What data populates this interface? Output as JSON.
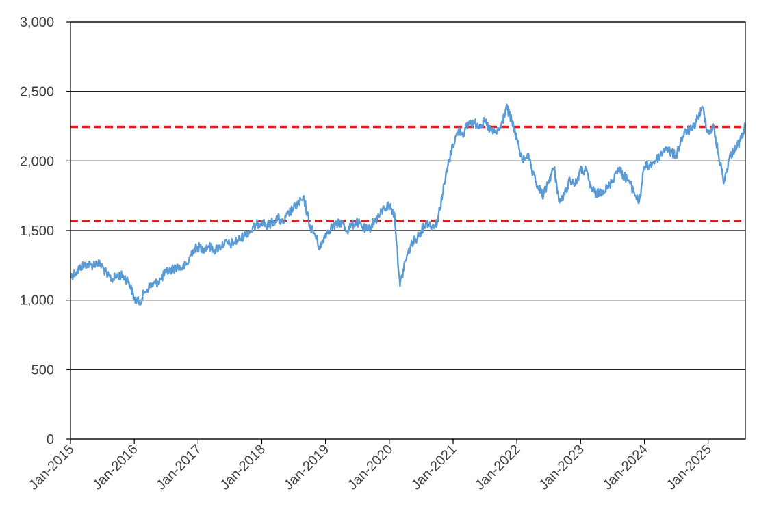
{
  "chart_data": {
    "type": "line",
    "title": "",
    "xlabel": "",
    "ylabel": "",
    "ylim": [
      0,
      3000
    ],
    "yticks": [
      0,
      500,
      1000,
      1500,
      2000,
      2500,
      3000
    ],
    "ytick_labels": [
      "0",
      "500",
      "1,000",
      "1,500",
      "2,000",
      "2,500",
      "3,000"
    ],
    "xlim": [
      "2015-01",
      "2025-08"
    ],
    "xticks": [
      "2015-01",
      "2016-01",
      "2017-01",
      "2018-01",
      "2019-01",
      "2020-01",
      "2021-01",
      "2022-01",
      "2023-01",
      "2024-01",
      "2025-01"
    ],
    "xtick_labels": [
      "Jan-2015",
      "Jan-2016",
      "Jan-2017",
      "Jan-2018",
      "Jan-2019",
      "Jan-2020",
      "Jan-2021",
      "Jan-2022",
      "Jan-2023",
      "Jan-2024",
      "Jan-2025"
    ],
    "grid": "horizontal",
    "legend": "none",
    "series": [
      {
        "color": "#5B9BD5",
        "x": [
          "2015-01",
          "2015-02",
          "2015-03",
          "2015-04",
          "2015-05",
          "2015-06",
          "2015-07",
          "2015-08",
          "2015-09",
          "2015-10",
          "2015-11",
          "2015-12",
          "2016-01",
          "2016-02",
          "2016-03",
          "2016-04",
          "2016-05",
          "2016-06",
          "2016-07",
          "2016-08",
          "2016-09",
          "2016-10",
          "2016-11",
          "2016-12",
          "2017-01",
          "2017-02",
          "2017-03",
          "2017-04",
          "2017-05",
          "2017-06",
          "2017-07",
          "2017-08",
          "2017-09",
          "2017-10",
          "2017-11",
          "2017-12",
          "2018-01",
          "2018-02",
          "2018-03",
          "2018-04",
          "2018-05",
          "2018-06",
          "2018-07",
          "2018-08",
          "2018-09",
          "2018-10",
          "2018-11",
          "2018-12",
          "2019-01",
          "2019-02",
          "2019-03",
          "2019-04",
          "2019-05",
          "2019-06",
          "2019-07",
          "2019-08",
          "2019-09",
          "2019-10",
          "2019-11",
          "2019-12",
          "2020-01",
          "2020-02",
          "2020-03",
          "2020-04",
          "2020-05",
          "2020-06",
          "2020-07",
          "2020-08",
          "2020-09",
          "2020-10",
          "2020-11",
          "2020-12",
          "2021-01",
          "2021-02",
          "2021-03",
          "2021-04",
          "2021-05",
          "2021-06",
          "2021-07",
          "2021-08",
          "2021-09",
          "2021-10",
          "2021-11",
          "2021-12",
          "2022-01",
          "2022-02",
          "2022-03",
          "2022-04",
          "2022-05",
          "2022-06",
          "2022-07",
          "2022-08",
          "2022-09",
          "2022-10",
          "2022-11",
          "2022-12",
          "2023-01",
          "2023-02",
          "2023-03",
          "2023-04",
          "2023-05",
          "2023-06",
          "2023-07",
          "2023-08",
          "2023-09",
          "2023-10",
          "2023-11",
          "2023-12",
          "2024-01",
          "2024-02",
          "2024-03",
          "2024-04",
          "2024-05",
          "2024-06",
          "2024-07",
          "2024-08",
          "2024-09",
          "2024-10",
          "2024-11",
          "2024-12",
          "2025-01",
          "2025-02",
          "2025-03",
          "2025-04",
          "2025-05",
          "2025-06",
          "2025-07",
          "2025-08"
        ],
        "values": [
          1170,
          1200,
          1240,
          1260,
          1250,
          1270,
          1240,
          1170,
          1150,
          1180,
          1170,
          1130,
          1010,
          980,
          1060,
          1100,
          1120,
          1150,
          1200,
          1220,
          1240,
          1230,
          1260,
          1360,
          1380,
          1370,
          1390,
          1360,
          1380,
          1410,
          1400,
          1420,
          1440,
          1480,
          1500,
          1540,
          1570,
          1530,
          1560,
          1590,
          1550,
          1620,
          1660,
          1700,
          1720,
          1540,
          1470,
          1370,
          1480,
          1520,
          1540,
          1560,
          1500,
          1540,
          1560,
          1520,
          1500,
          1560,
          1600,
          1660,
          1680,
          1610,
          1100,
          1280,
          1390,
          1440,
          1500,
          1560,
          1530,
          1560,
          1760,
          1960,
          2120,
          2220,
          2200,
          2280,
          2270,
          2260,
          2280,
          2220,
          2200,
          2240,
          2390,
          2290,
          2160,
          2000,
          2050,
          1900,
          1810,
          1750,
          1860,
          1950,
          1700,
          1760,
          1870,
          1830,
          1930,
          1930,
          1800,
          1760,
          1790,
          1800,
          1860,
          1950,
          1900,
          1860,
          1780,
          1700,
          1960,
          1970,
          2000,
          2040,
          2100,
          2060,
          2040,
          2160,
          2220,
          2220,
          2310,
          2380,
          2200,
          2250,
          2030,
          1850,
          2020,
          2090,
          2140,
          2250
        ]
      }
    ],
    "reference_lines": [
      {
        "y": 2245,
        "color": "#E31A1C",
        "style": "dashed"
      },
      {
        "y": 1570,
        "color": "#E31A1C",
        "style": "dashed"
      }
    ]
  }
}
